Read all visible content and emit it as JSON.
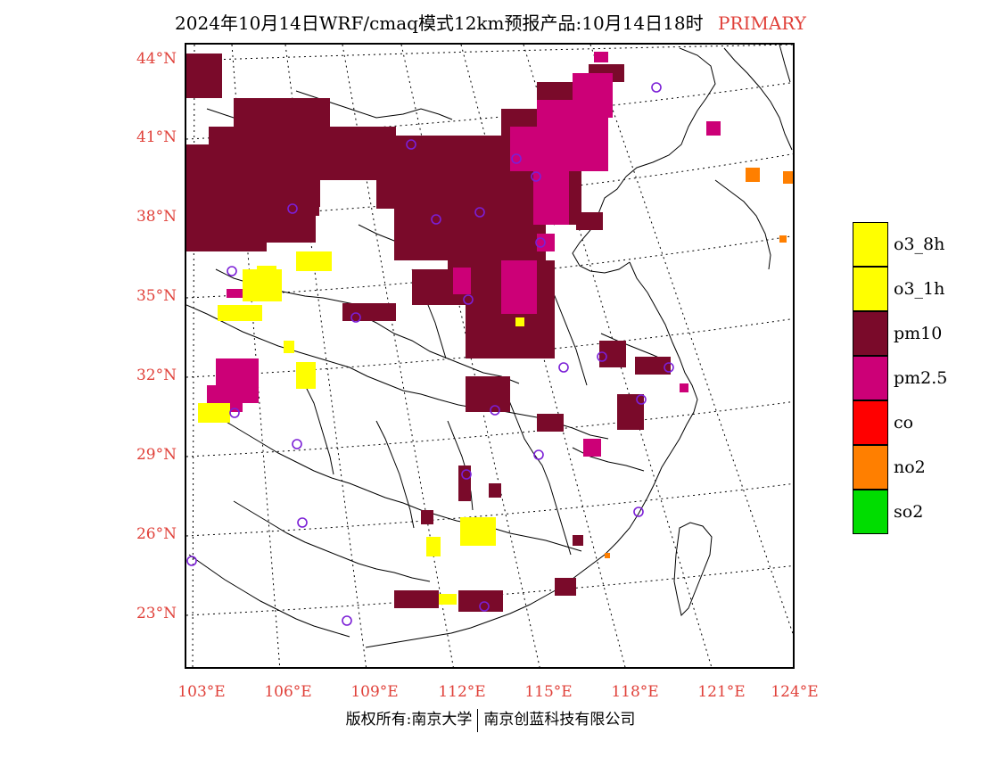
{
  "title": {
    "main": "2024年10月14日WRF/cmaq模式12km预报产品:10月14日18时",
    "tag": "PRIMARY"
  },
  "axes": {
    "lat_ticks": [
      "44°N",
      "41°N",
      "38°N",
      "35°N",
      "32°N",
      "29°N",
      "26°N",
      "23°N"
    ],
    "lon_ticks": [
      "103°E",
      "106°E",
      "109°E",
      "112°E",
      "115°E",
      "118°E",
      "121°E",
      "124°E"
    ]
  },
  "legend": [
    {
      "label": "o3_8h",
      "color": "#ffff00"
    },
    {
      "label": "o3_1h",
      "color": "#ffff00"
    },
    {
      "label": "pm10",
      "color": "#7a0a2a"
    },
    {
      "label": "pm2.5",
      "color": "#cc0077"
    },
    {
      "label": "co",
      "color": "#ff0000"
    },
    {
      "label": "no2",
      "color": "#ff7f00"
    },
    {
      "label": "so2",
      "color": "#00dd00"
    }
  ],
  "copyright": {
    "left": "版权所有:南京大学",
    "right": "南京创蓝科技有限公司"
  },
  "colors": {
    "axis_label": "#e0413a",
    "pm10": "#7a0a2a",
    "pm25": "#cc0077",
    "o3": "#ffff00",
    "no2": "#ff7f00",
    "station": "#7b1fd6"
  }
}
